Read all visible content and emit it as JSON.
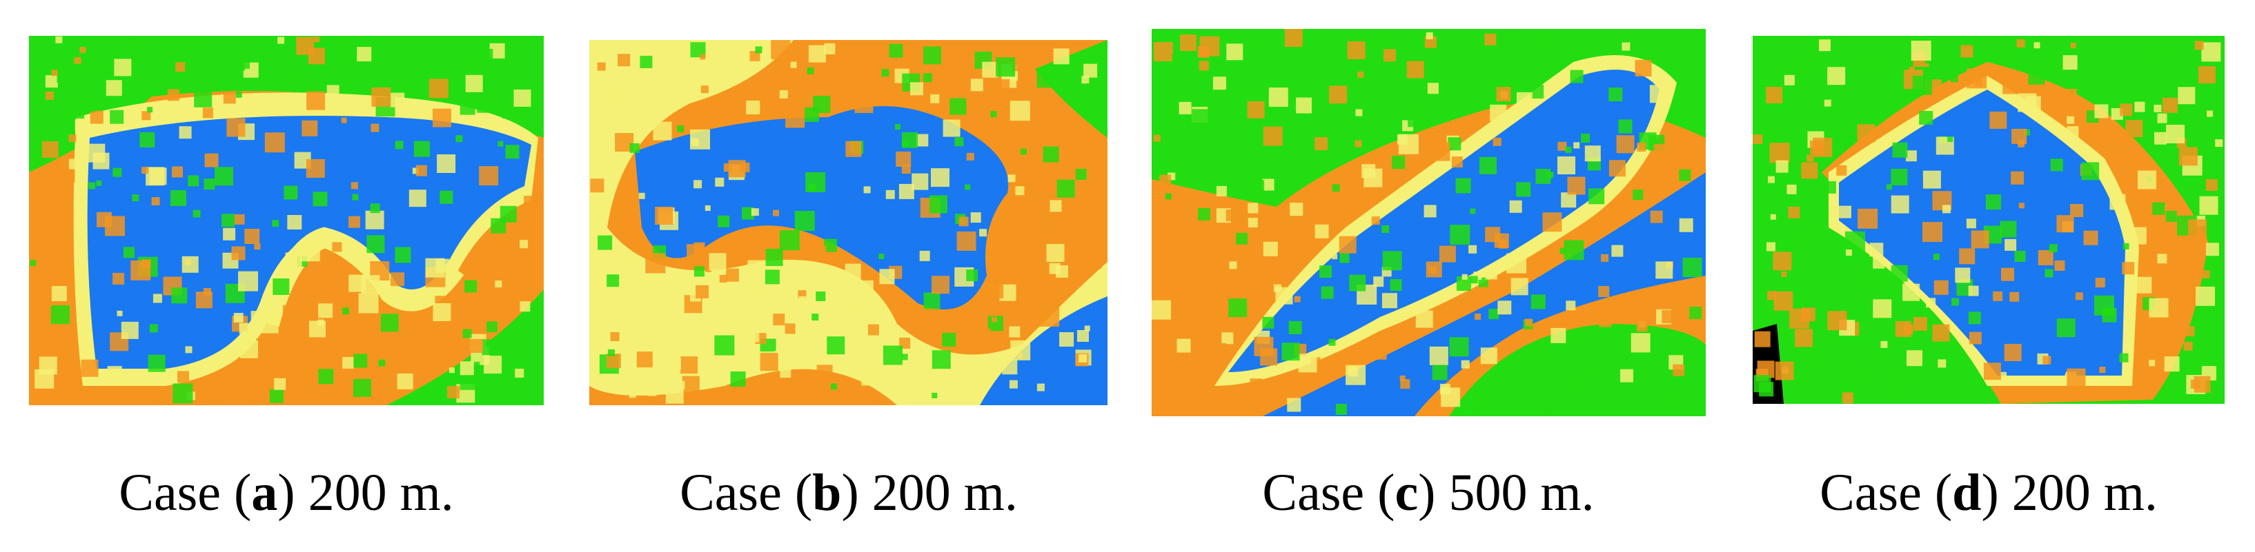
{
  "panels": [
    {
      "prefix": "Case (",
      "letter": "a",
      "suffix": ") 200 m."
    },
    {
      "prefix": "Case (",
      "letter": "b",
      "suffix": ") 200 m."
    },
    {
      "prefix": "Case (",
      "letter": "c",
      "suffix": ") 500 m."
    },
    {
      "prefix": "Case (",
      "letter": "d",
      "suffix": ") 200 m."
    }
  ]
}
